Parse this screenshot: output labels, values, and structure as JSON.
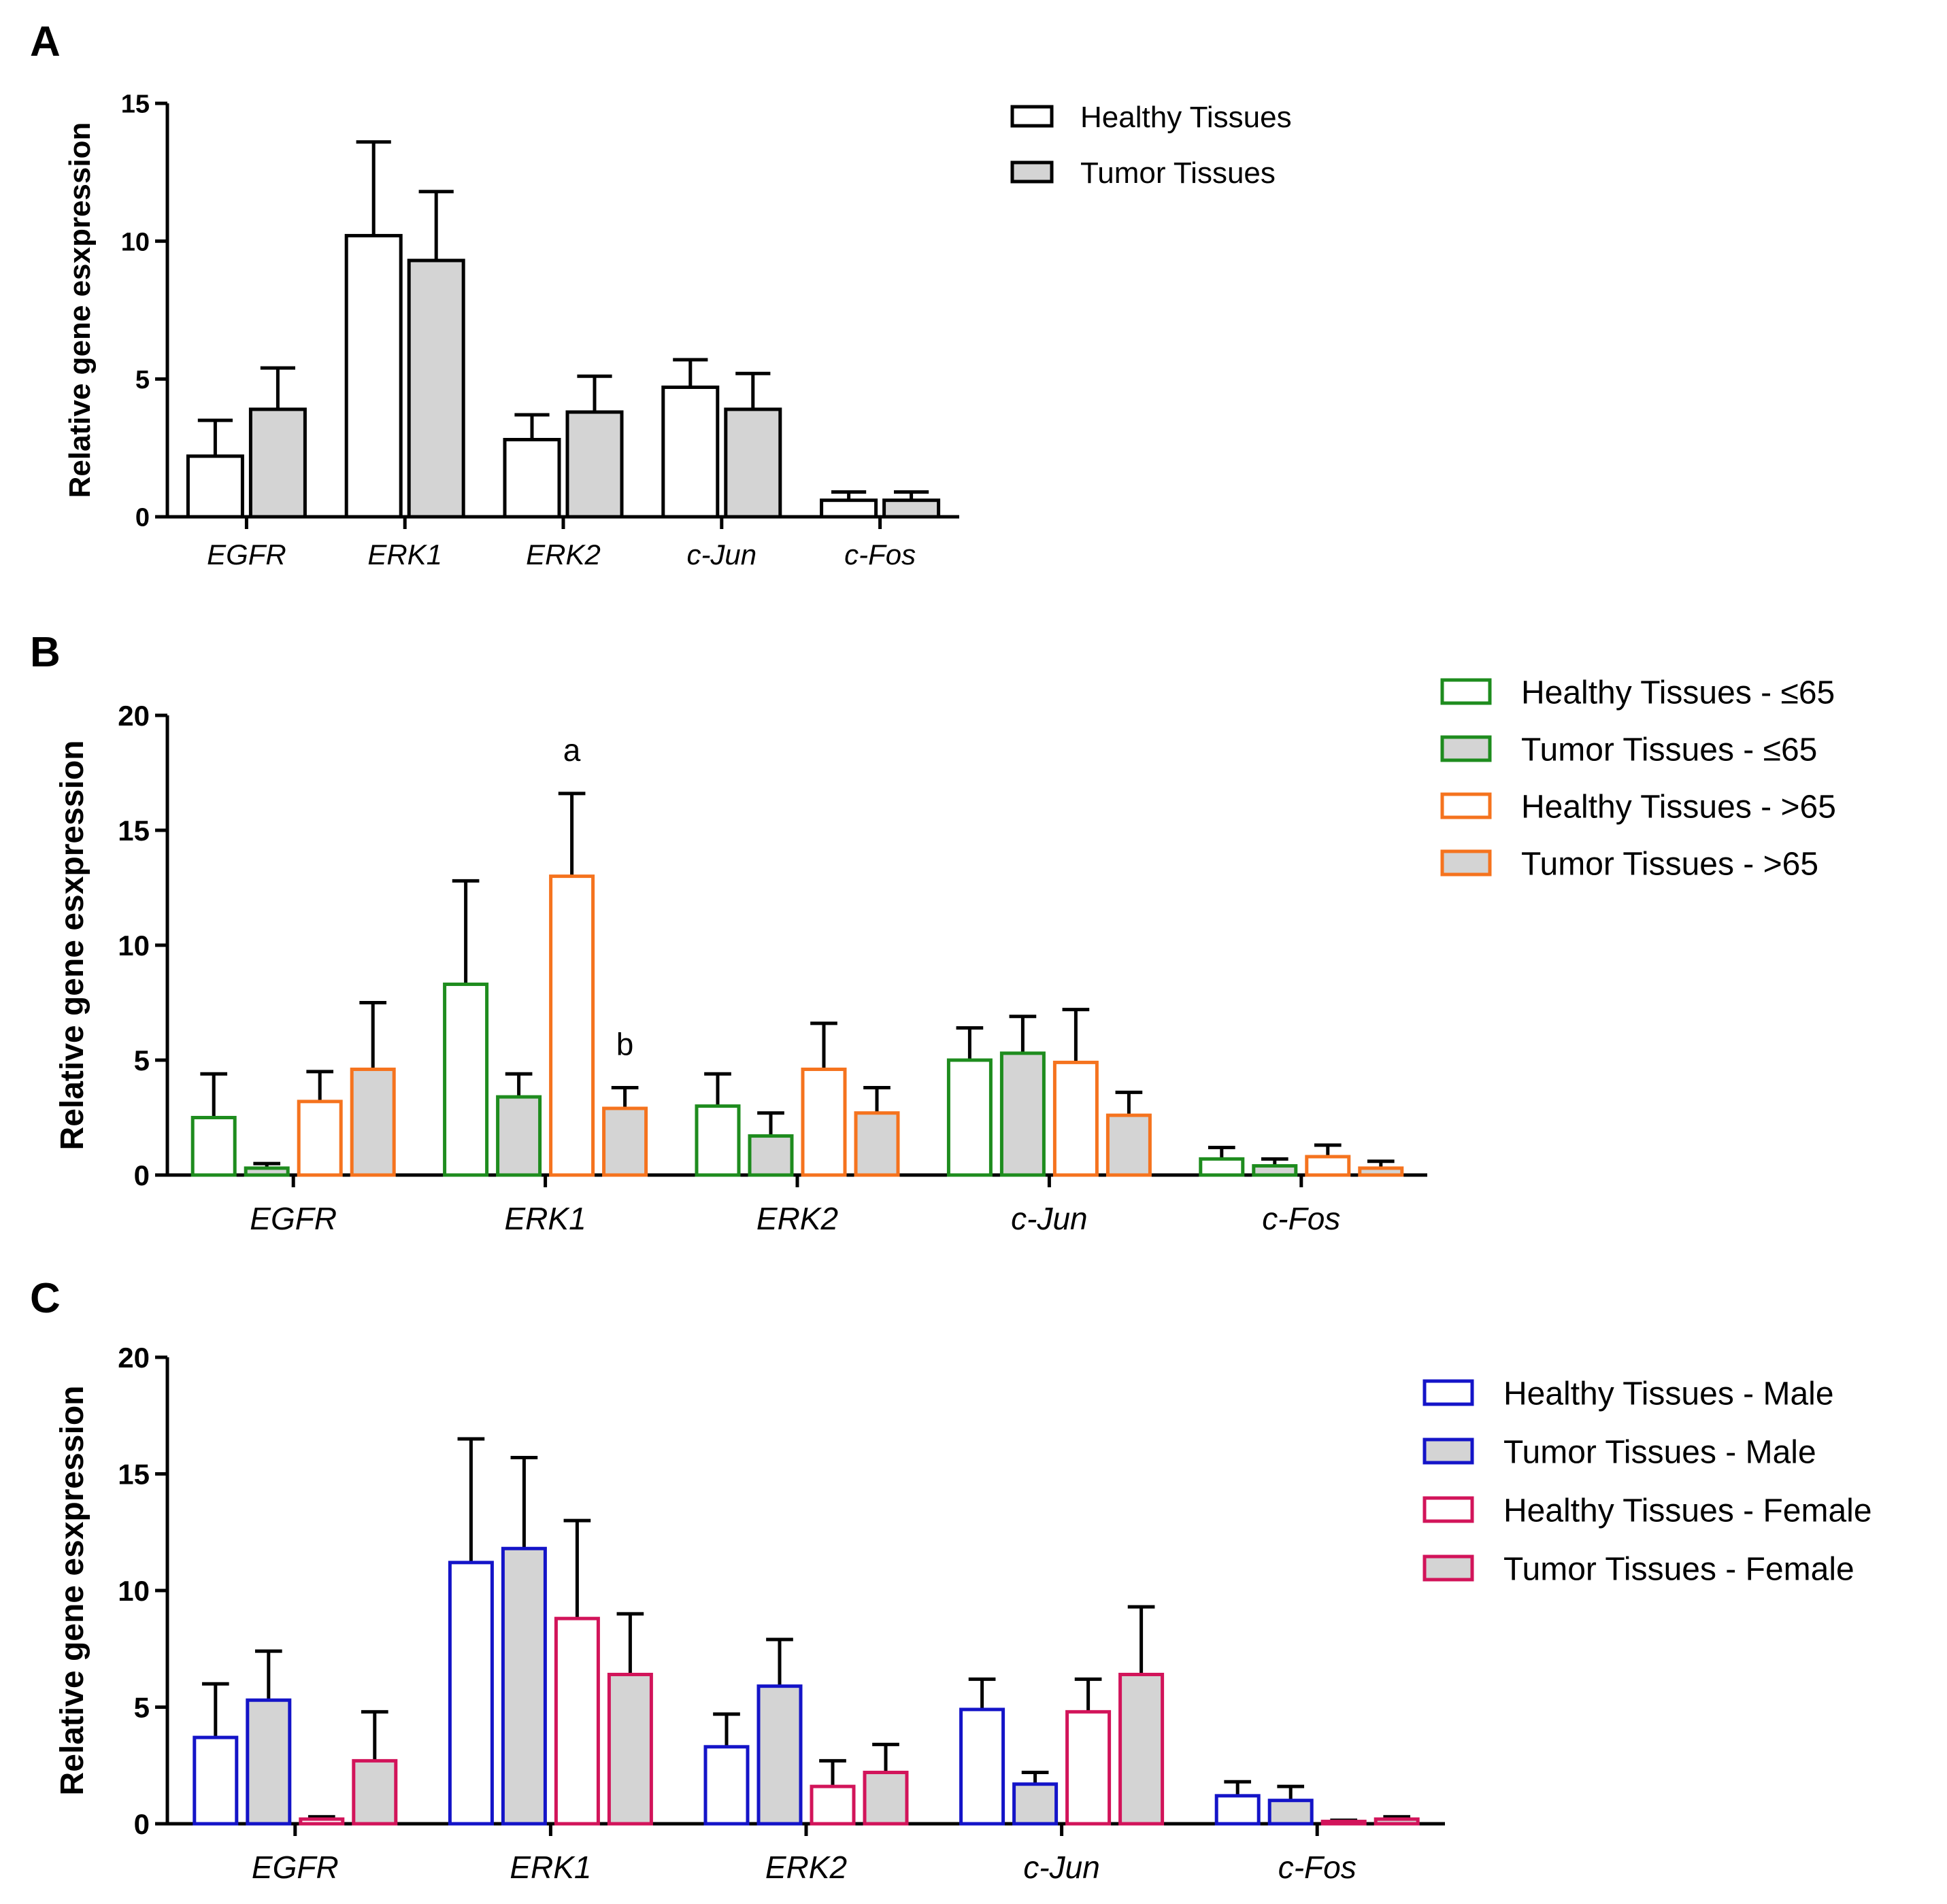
{
  "chart_data": [
    {
      "type": "bar",
      "panel": "A",
      "ylabel": "Relative gene esxpression",
      "ylim": [
        0,
        15
      ],
      "yticks": [
        0,
        5,
        10,
        15
      ],
      "categories": [
        "EGFR",
        "ERK1",
        "ERK2",
        "c-Jun",
        "c-Fos"
      ],
      "legend_position": "top-right",
      "series": [
        {
          "name": "Healthy Tissues",
          "stroke": "#000000",
          "fill": "#ffffff",
          "values": [
            2.2,
            10.2,
            2.8,
            4.7,
            0.6
          ],
          "errors": [
            1.3,
            3.4,
            0.9,
            1.0,
            0.3
          ]
        },
        {
          "name": "Tumor Tissues",
          "stroke": "#000000",
          "fill": "#d4d4d4",
          "values": [
            3.9,
            9.3,
            3.8,
            3.9,
            0.6
          ],
          "errors": [
            1.5,
            2.5,
            1.3,
            1.3,
            0.3
          ]
        }
      ],
      "annotations": []
    },
    {
      "type": "bar",
      "panel": "B",
      "ylabel": "Relative gene esxpression",
      "ylim": [
        0,
        20
      ],
      "yticks": [
        0,
        5,
        10,
        15,
        20
      ],
      "categories": [
        "EGFR",
        "ERK1",
        "ERK2",
        "c-Jun",
        "c-Fos"
      ],
      "legend_position": "top-right",
      "series": [
        {
          "name": "Healthy Tissues - ≤65",
          "stroke": "#1e8c1e",
          "fill": "#ffffff",
          "values": [
            2.5,
            8.3,
            3.0,
            5.0,
            0.7
          ],
          "errors": [
            1.9,
            4.5,
            1.4,
            1.4,
            0.5
          ]
        },
        {
          "name": "Tumor Tissues - ≤65",
          "stroke": "#1e8c1e",
          "fill": "#d4d4d4",
          "values": [
            0.3,
            3.4,
            1.7,
            5.3,
            0.4
          ],
          "errors": [
            0.2,
            1.0,
            1.0,
            1.6,
            0.3
          ]
        },
        {
          "name": "Healthy Tissues - >65",
          "stroke": "#f5731e",
          "fill": "#ffffff",
          "values": [
            3.2,
            13.0,
            4.6,
            4.9,
            0.8
          ],
          "errors": [
            1.3,
            3.6,
            2.0,
            2.3,
            0.5
          ]
        },
        {
          "name": "Tumor Tissues - >65",
          "stroke": "#f5731e",
          "fill": "#d4d4d4",
          "values": [
            4.6,
            2.9,
            2.7,
            2.6,
            0.3
          ],
          "errors": [
            2.9,
            0.9,
            1.1,
            1.0,
            0.3
          ]
        }
      ],
      "annotations": [
        {
          "category": "ERK1",
          "series": 2,
          "text": "a"
        },
        {
          "category": "ERK1",
          "series": 3,
          "text": "b"
        }
      ]
    },
    {
      "type": "bar",
      "panel": "C",
      "ylabel": "Relative gene esxpression",
      "ylim": [
        0,
        20
      ],
      "yticks": [
        0,
        5,
        10,
        15,
        20
      ],
      "categories": [
        "EGFR",
        "ERK1",
        "ERK2",
        "c-Jun",
        "c-Fos"
      ],
      "legend_position": "top-right",
      "series": [
        {
          "name": "Healthy Tissues - Male",
          "stroke": "#1414c8",
          "fill": "#ffffff",
          "values": [
            3.7,
            11.2,
            3.3,
            4.9,
            1.2
          ],
          "errors": [
            2.3,
            5.3,
            1.4,
            1.3,
            0.6
          ]
        },
        {
          "name": "Tumor Tissues - Male",
          "stroke": "#1414c8",
          "fill": "#d4d4d4",
          "values": [
            5.3,
            11.8,
            5.9,
            1.7,
            1.0
          ],
          "errors": [
            2.1,
            3.9,
            2.0,
            0.5,
            0.6
          ]
        },
        {
          "name": "Healthy Tissues - Female",
          "stroke": "#d2145a",
          "fill": "#ffffff",
          "values": [
            0.2,
            8.8,
            1.6,
            4.8,
            0.1
          ],
          "errors": [
            0.1,
            4.2,
            1.1,
            1.4,
            0.05
          ]
        },
        {
          "name": "Tumor Tissues - Female",
          "stroke": "#d2145a",
          "fill": "#d4d4d4",
          "values": [
            2.7,
            6.4,
            2.2,
            6.4,
            0.2
          ],
          "errors": [
            2.1,
            2.6,
            1.2,
            2.9,
            0.1
          ]
        }
      ],
      "annotations": []
    }
  ]
}
